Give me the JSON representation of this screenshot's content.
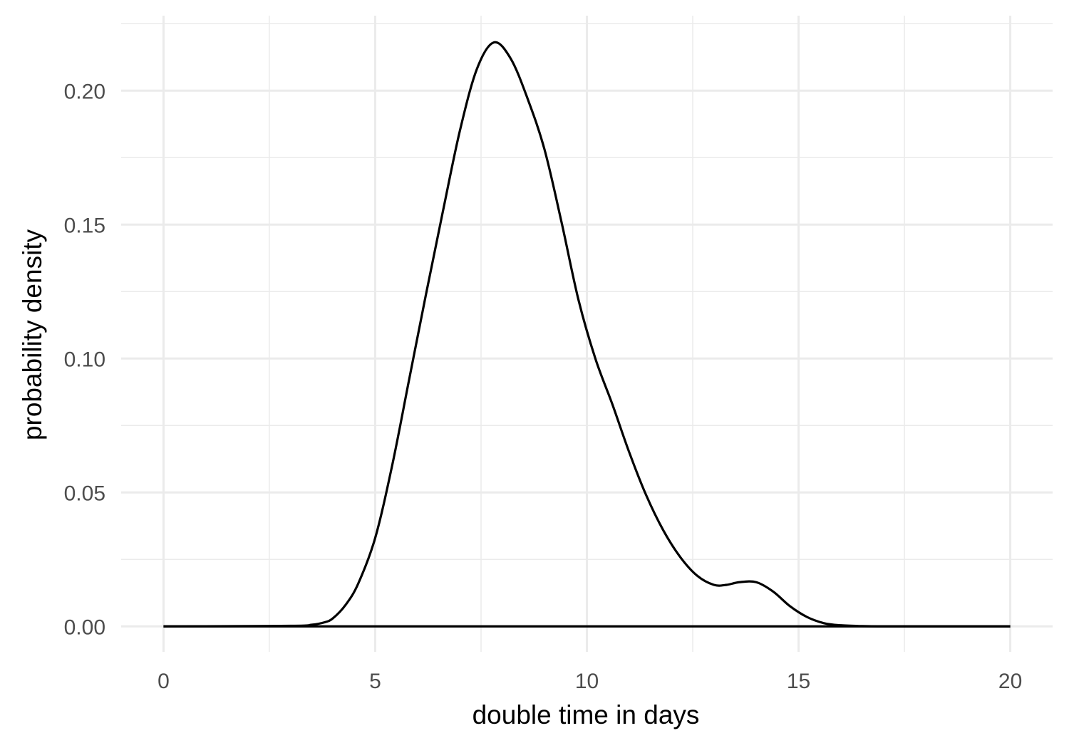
{
  "chart_data": {
    "type": "line",
    "title": "",
    "xlabel": "double time in days",
    "ylabel": "probability density",
    "xlim": [
      -1,
      21
    ],
    "ylim": [
      -0.0095,
      0.228
    ],
    "x_ticks": [
      0,
      5,
      10,
      15,
      20
    ],
    "x_tick_labels": [
      "0",
      "5",
      "10",
      "15",
      "20"
    ],
    "x_minor_ticks": [
      2.5,
      7.5,
      12.5,
      17.5
    ],
    "y_ticks": [
      0,
      0.05,
      0.1,
      0.15,
      0.2
    ],
    "y_tick_labels": [
      "0.00",
      "0.05",
      "0.10",
      "0.15",
      "0.20"
    ],
    "y_minor_ticks": [
      0.025,
      0.075,
      0.125,
      0.175,
      0.225
    ],
    "grid": true,
    "legend": "none",
    "colors": {
      "line": "#000000",
      "grid": "#ebebeb",
      "background": "#ffffff"
    },
    "series": [
      {
        "x": [
          0,
          3.0,
          3.5,
          3.8,
          4.0,
          4.3,
          4.6,
          5.0,
          5.4,
          5.8,
          6.2,
          6.6,
          7.0,
          7.4,
          7.8,
          8.2,
          8.6,
          9.0,
          9.4,
          9.8,
          10.2,
          10.6,
          11.0,
          11.4,
          11.8,
          12.2,
          12.6,
          13.0,
          13.3,
          13.6,
          14.0,
          14.4,
          14.8,
          15.2,
          15.6,
          16.0,
          16.5,
          17.0,
          18.0,
          20
        ],
        "y": [
          0,
          0.0002,
          0.0006,
          0.0015,
          0.003,
          0.008,
          0.016,
          0.033,
          0.06,
          0.092,
          0.124,
          0.155,
          0.185,
          0.208,
          0.218,
          0.212,
          0.197,
          0.178,
          0.151,
          0.122,
          0.1,
          0.083,
          0.065,
          0.049,
          0.036,
          0.026,
          0.019,
          0.0155,
          0.0155,
          0.0165,
          0.0165,
          0.013,
          0.0075,
          0.0035,
          0.0012,
          0.0004,
          0.0001,
          0,
          0,
          0
        ]
      },
      {
        "x": [
          0,
          20
        ],
        "y": [
          0,
          0
        ]
      }
    ]
  }
}
